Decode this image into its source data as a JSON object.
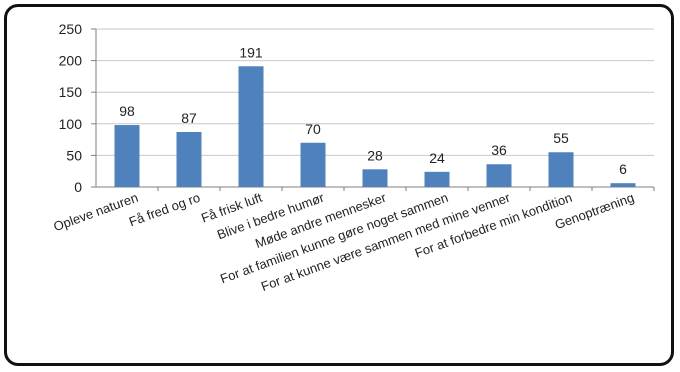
{
  "chart_data": {
    "type": "bar",
    "title": "",
    "xlabel": "",
    "ylabel": "",
    "ylim": [
      0,
      250
    ],
    "yticks": [
      0,
      50,
      100,
      150,
      200,
      250
    ],
    "grid": true,
    "legend": "none",
    "bar_color": "#4f81bd",
    "categories": [
      "Opleve naturen",
      "Få fred og ro",
      "Få frisk luft",
      "Blive i bedre humør",
      "Møde andre mennesker",
      "For at familien kunne gøre noget sammen",
      "For at kunne være sammen med mine venner",
      "For at forbedre min kondition",
      "Genoptræning"
    ],
    "values": [
      98,
      87,
      191,
      70,
      28,
      24,
      36,
      55,
      6
    ]
  }
}
